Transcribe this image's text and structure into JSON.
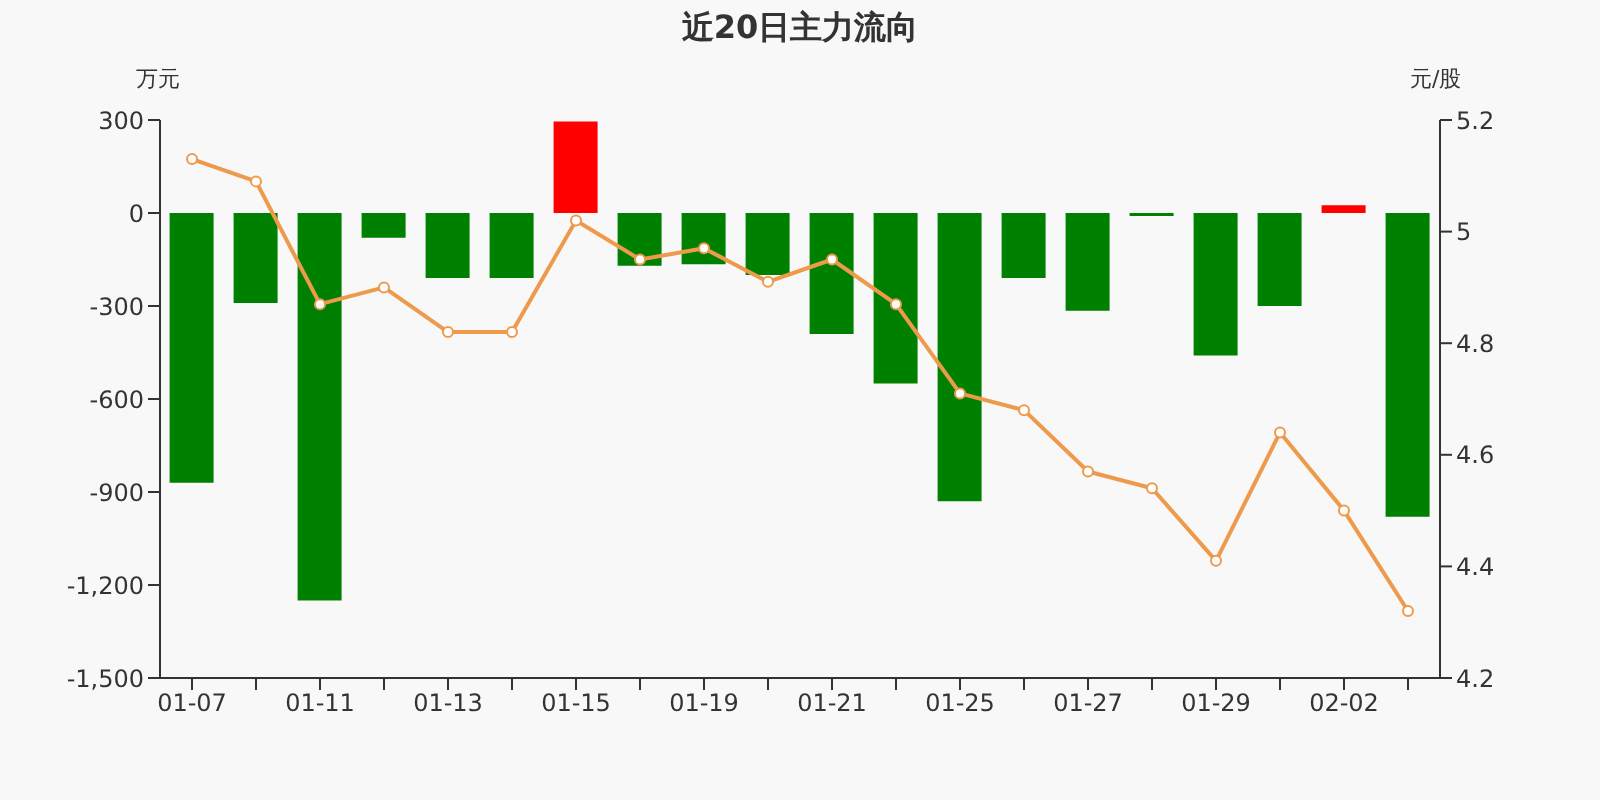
{
  "chart_data": {
    "type": "bar",
    "title": "近20日主力流向",
    "ylabel": "万元",
    "y2label": "元/股",
    "categories": [
      "01-07",
      null,
      "01-11",
      null,
      "01-13",
      null,
      "01-15",
      null,
      "01-19",
      null,
      "01-21",
      null,
      "01-25",
      null,
      "01-27",
      null,
      "01-29",
      null,
      "02-02",
      null
    ],
    "series": [
      {
        "values": [
          -870,
          -290,
          -1250,
          -80,
          -210,
          -210,
          295,
          -170,
          -165,
          -200,
          -390,
          -550,
          -930,
          -210,
          -315,
          -10,
          -460,
          -300,
          25,
          -980
        ],
        "colors": [
          "#008000",
          "#008000",
          "#008000",
          "#008000",
          "#008000",
          "#008000",
          "#ff0000",
          "#008000",
          "#008000",
          "#008000",
          "#008000",
          "#008000",
          "#008000",
          "#008000",
          "#008000",
          "#008000",
          "#008000",
          "#008000",
          "#ff0000",
          "#008000"
        ]
      },
      {
        "type": "line",
        "axis": "y2",
        "color": "#ee9a4c",
        "marker": "circle",
        "values": [
          5.13,
          5.09,
          4.87,
          4.9,
          4.82,
          4.82,
          5.02,
          4.95,
          4.97,
          4.91,
          4.95,
          4.87,
          4.71,
          4.68,
          4.57,
          4.54,
          4.41,
          4.64,
          4.5,
          4.32
        ]
      }
    ],
    "ylim": [
      -1500,
      300
    ],
    "yticks": [
      {
        "value": -1500,
        "label": "-1,500"
      },
      {
        "value": -1200,
        "label": "-1,200"
      },
      -900,
      -600,
      -300,
      0,
      300
    ],
    "y2lim": [
      4.2,
      5.2
    ],
    "y2ticks": [
      4.2,
      4.4,
      4.6,
      4.8,
      5,
      5.2
    ],
    "grid": false,
    "legend": false
  }
}
